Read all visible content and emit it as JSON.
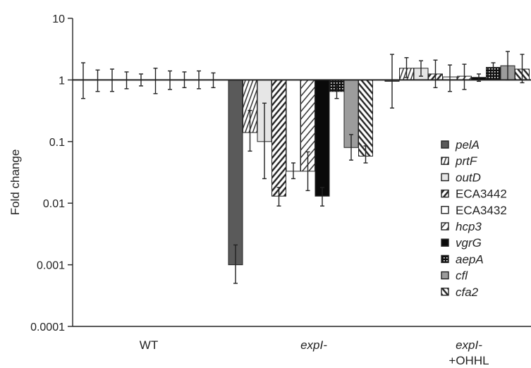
{
  "chart_data": {
    "type": "bar",
    "title": "",
    "xlabel": "",
    "ylabel": "Fold change",
    "yscale": "log",
    "ylim": [
      0.0001,
      10
    ],
    "yticks": [
      "10",
      "1",
      "0.1",
      "0.01",
      "0.001",
      "0.0001"
    ],
    "categories": [
      "WT",
      "expI-",
      "expI- +OHHL"
    ],
    "category_lines": [
      [
        "WT"
      ],
      [
        "expI-"
      ],
      [
        "expI-",
        "+OHHL"
      ]
    ],
    "category_italic": [
      false,
      true,
      true
    ],
    "legend_position": "right",
    "grid": false,
    "series": [
      {
        "name": "pelA",
        "italic": true,
        "color": "#5a5a5a",
        "pattern": "solid",
        "values": [
          1,
          0.001,
          0.95
        ],
        "err_low": [
          0.5,
          0.0005,
          0.35
        ],
        "err_high": [
          1.9,
          0.0021,
          2.6
        ]
      },
      {
        "name": "prtF",
        "italic": true,
        "color": "#ffffff",
        "pattern": "vlines",
        "values": [
          1,
          0.14,
          1.55
        ],
        "err_low": [
          0.65,
          0.07,
          1.1
        ],
        "err_high": [
          1.45,
          0.32,
          2.3
        ]
      },
      {
        "name": "outD",
        "italic": true,
        "color": "#e6e6e6",
        "pattern": "solid",
        "values": [
          1,
          0.1,
          1.55
        ],
        "err_low": [
          0.65,
          0.025,
          1.15
        ],
        "err_high": [
          1.5,
          0.42,
          2.05
        ]
      },
      {
        "name": "ECA3442",
        "italic": false,
        "color": "#ffffff",
        "pattern": "diag-dense",
        "values": [
          1,
          0.013,
          1.25
        ],
        "err_low": [
          0.72,
          0.009,
          0.75
        ],
        "err_high": [
          1.35,
          0.018,
          2.1
        ]
      },
      {
        "name": "ECA3432",
        "italic": false,
        "color": "#ffffff",
        "pattern": "solid",
        "values": [
          1,
          0.033,
          1.12
        ],
        "err_low": [
          0.8,
          0.025,
          0.65
        ],
        "err_high": [
          1.25,
          0.045,
          1.75
        ]
      },
      {
        "name": "hcp3",
        "italic": true,
        "color": "#ffffff",
        "pattern": "diag-sparse",
        "values": [
          1,
          0.033,
          1.15
        ],
        "err_low": [
          0.6,
          0.016,
          0.7
        ],
        "err_high": [
          1.55,
          0.068,
          1.8
        ]
      },
      {
        "name": "vgrG",
        "italic": true,
        "color": "#0a0a0a",
        "pattern": "solid",
        "values": [
          1,
          0.013,
          1.1
        ],
        "err_low": [
          0.7,
          0.009,
          0.95
        ],
        "err_high": [
          1.4,
          0.018,
          1.25
        ]
      },
      {
        "name": "aepA",
        "italic": true,
        "color": "#111111",
        "pattern": "grid-dots",
        "values": [
          1,
          0.65,
          1.6
        ],
        "err_low": [
          0.75,
          0.5,
          1.3
        ],
        "err_high": [
          1.35,
          0.8,
          1.9
        ]
      },
      {
        "name": "cfl",
        "italic": true,
        "color": "#9c9c9c",
        "pattern": "solid",
        "values": [
          1,
          0.08,
          1.7
        ],
        "err_low": [
          0.72,
          0.05,
          1.0
        ],
        "err_high": [
          1.4,
          0.13,
          2.9
        ]
      },
      {
        "name": "cfa2",
        "italic": true,
        "color": "#ffffff",
        "pattern": "diag-back",
        "values": [
          1,
          0.058,
          1.5
        ],
        "err_low": [
          0.75,
          0.045,
          0.9
        ],
        "err_high": [
          1.3,
          0.085,
          2.6
        ]
      }
    ]
  }
}
